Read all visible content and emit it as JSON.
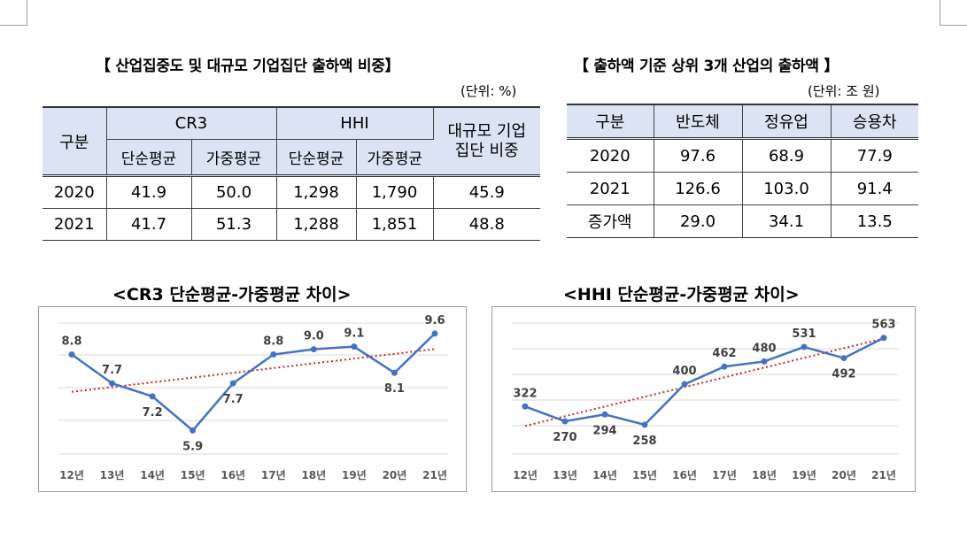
{
  "left_table": {
    "title": "【 산업집중도 및 대규모 기업집단 출하액 비중】",
    "unit": "(단위: %)",
    "header": {
      "category": "구분",
      "cr3": "CR3",
      "hhi": "HHI",
      "large_group_share": "대규모 기업집단 비중",
      "simple_avg": "단순평균",
      "weighted_avg": "가중평균"
    },
    "rows": [
      {
        "year": "2020",
        "cr3_simple": "41.9",
        "cr3_weighted": "50.0",
        "hhi_simple": "1,298",
        "hhi_weighted": "1,790",
        "share": "45.9"
      },
      {
        "year": "2021",
        "cr3_simple": "41.7",
        "cr3_weighted": "51.3",
        "hhi_simple": "1,288",
        "hhi_weighted": "1,851",
        "share": "48.8"
      }
    ]
  },
  "right_table": {
    "title": "【 출하액 기준 상위 3개 산업의 출하액 】",
    "unit": "(단위: 조 원)",
    "header": [
      "구분",
      "반도체",
      "정유업",
      "승용차"
    ],
    "rows": [
      [
        "2020",
        "97.6",
        "68.9",
        "77.9"
      ],
      [
        "2021",
        "126.6",
        "103.0",
        "91.4"
      ],
      [
        "증가액",
        "29.0",
        "34.1",
        "13.5"
      ]
    ]
  },
  "chart_data": [
    {
      "type": "line",
      "title": "<CR3 단순평균-가중평균 차이>",
      "categories": [
        "12년",
        "13년",
        "14년",
        "15년",
        "16년",
        "17년",
        "18년",
        "19년",
        "20년",
        "21년"
      ],
      "values": [
        8.8,
        7.7,
        7.2,
        5.9,
        7.7,
        8.8,
        9.0,
        9.1,
        8.1,
        9.6
      ],
      "labels": [
        "8.8",
        "7.7",
        "7.2",
        "5.9",
        "7.7",
        "8.8",
        "9.0",
        "9.1",
        "8.1",
        "9.6"
      ],
      "trendline": {
        "type": "linear",
        "style": "dotted",
        "color": "#cc2222"
      },
      "ylim": [
        5.0,
        10.0
      ],
      "grid": true,
      "line_color": "#4472c4"
    },
    {
      "type": "line",
      "title": "<HHI 단순평균-가중평균 차이>",
      "categories": [
        "12년",
        "13년",
        "14년",
        "15년",
        "16년",
        "17년",
        "18년",
        "19년",
        "20년",
        "21년"
      ],
      "values": [
        322,
        270,
        294,
        258,
        400,
        462,
        480,
        531,
        492,
        563
      ],
      "labels": [
        "322",
        "270",
        "294",
        "258",
        "400",
        "462",
        "480",
        "531",
        "492",
        "563"
      ],
      "trendline": {
        "type": "linear",
        "style": "dotted",
        "color": "#cc2222"
      },
      "ylim": [
        155,
        615
      ],
      "grid": true,
      "line_color": "#4472c4"
    }
  ]
}
